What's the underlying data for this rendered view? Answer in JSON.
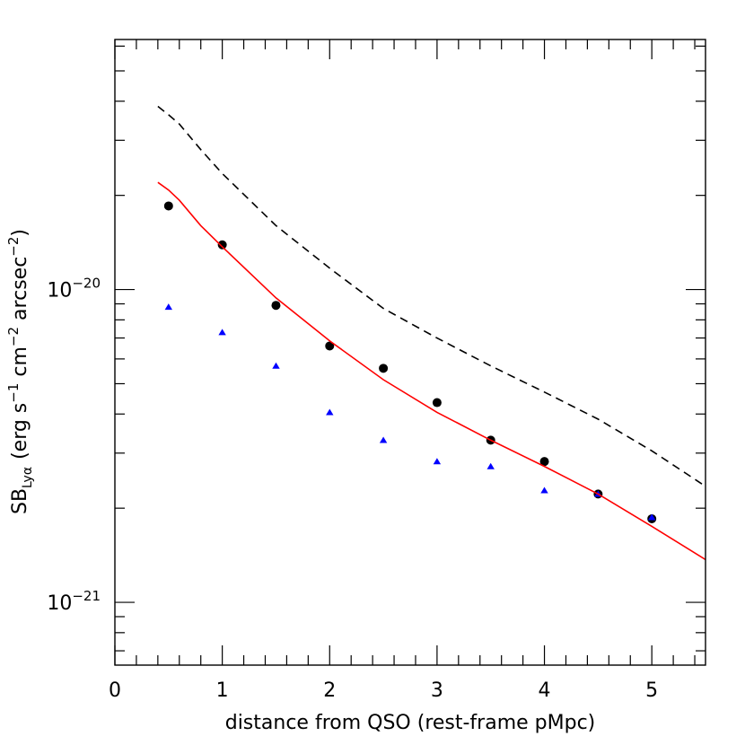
{
  "chart_data": {
    "type": "scatter",
    "title": "",
    "xlabel": "distance from QSO (rest-frame pMpc)",
    "ylabel": {
      "prefix": "SB",
      "subscript": "Lyα",
      "units_open": "(erg s",
      "exp1": "−1",
      "units_mid1": " cm",
      "exp2": "−2",
      "units_mid2": " arcsec",
      "exp3": "−2",
      "units_close": ")"
    },
    "xlim": [
      0,
      5.5
    ],
    "ylim": [
      6.3e-22,
      6.3e-20
    ],
    "yscale": "log",
    "x_ticks": [
      {
        "value": 0,
        "label": "0"
      },
      {
        "value": 1,
        "label": "1"
      },
      {
        "value": 2,
        "label": "2"
      },
      {
        "value": 3,
        "label": "3"
      },
      {
        "value": 4,
        "label": "4"
      },
      {
        "value": 5,
        "label": "5"
      }
    ],
    "y_ticks": [
      {
        "value": 1e-20,
        "base": "10",
        "exp": "−20"
      },
      {
        "value": 1e-21,
        "base": "10",
        "exp": "−21"
      }
    ],
    "series": [
      {
        "style": "points",
        "marker": "circle",
        "color": "#000000",
        "x": [
          0.5,
          1.0,
          1.5,
          2.0,
          2.5,
          3.0,
          3.5,
          4.0,
          4.5,
          5.0
        ],
        "y": [
          1.85e-20,
          1.39e-20,
          8.9e-21,
          6.6e-21,
          5.6e-21,
          4.35e-21,
          3.3e-21,
          2.82e-21,
          2.22e-21,
          1.85e-21
        ]
      },
      {
        "style": "points",
        "marker": "triangle",
        "color": "#0000ff",
        "x": [
          0.5,
          1.0,
          1.5,
          2.0,
          2.5,
          3.0,
          3.5,
          4.0,
          4.5,
          5.0
        ],
        "y": [
          8.8e-21,
          7.3e-21,
          5.7e-21,
          4.05e-21,
          3.3e-21,
          2.82e-21,
          2.72e-21,
          2.28e-21,
          2.22e-21,
          1.87e-21
        ]
      },
      {
        "style": "line",
        "dash": "solid",
        "color": "#ff0000",
        "x": [
          0.4,
          0.5,
          0.6,
          0.8,
          1.0,
          1.5,
          2.0,
          2.5,
          3.0,
          3.5,
          4.0,
          4.5,
          5.0,
          5.5
        ],
        "y": [
          2.2e-20,
          2.08e-20,
          1.93e-20,
          1.6e-20,
          1.37e-20,
          9.4e-21,
          6.85e-21,
          5.15e-21,
          4.05e-21,
          3.3e-21,
          2.72e-21,
          2.22e-21,
          1.75e-21,
          1.37e-21
        ]
      },
      {
        "style": "line",
        "dash": "dashed",
        "color": "#000000",
        "x": [
          0.4,
          0.5,
          0.6,
          0.8,
          1.0,
          1.5,
          2.0,
          2.5,
          3.0,
          3.5,
          4.0,
          4.5,
          5.0,
          5.5
        ],
        "y": [
          3.85e-20,
          3.62e-20,
          3.38e-20,
          2.8e-20,
          2.35e-20,
          1.6e-20,
          1.17e-20,
          8.7e-21,
          7e-21,
          5.7e-21,
          4.7e-21,
          3.85e-21,
          3.05e-21,
          2.35e-21
        ]
      }
    ]
  }
}
